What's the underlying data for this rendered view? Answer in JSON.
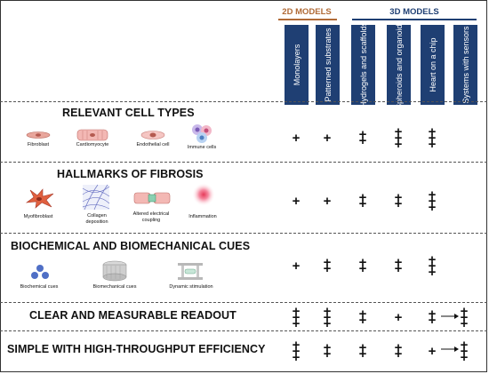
{
  "header": {
    "group_2d": "2D MODELS",
    "group_3d": "3D MODELS",
    "colors": {
      "group_2d": "#b06a36",
      "group_3d": "#1f3f73",
      "column_bg": "#1f3f73"
    },
    "columns": [
      "Monolayers",
      "Patterned substrates",
      "Hydrogels and scaffolds",
      "Spheroids and organoids",
      "Heart on a chip",
      "Systems with sensors"
    ]
  },
  "sections": [
    {
      "title": "RELEVANT CELL TYPES",
      "items": [
        "Fibroblast",
        "Cardiomyocyte",
        "Endothelial cell",
        "Immune cells"
      ],
      "scores": [
        "+",
        "+",
        "++",
        "+++",
        "+++",
        ""
      ]
    },
    {
      "title": "HALLMARKS OF FIBROSIS",
      "items": [
        "Myofibroblast",
        "Collagen deposition",
        "Altered electrical coupling",
        "Inflammation"
      ],
      "scores": [
        "+",
        "+",
        "++",
        "++",
        "+++",
        ""
      ]
    },
    {
      "title": "BIOCHEMICAL AND BIOMECHANICAL CUES",
      "items": [
        "Biochemical cues",
        "Biomechanical cues",
        "Dynamic stimulation"
      ],
      "scores": [
        "+",
        "++",
        "++",
        "++",
        "+++",
        ""
      ]
    },
    {
      "title": "CLEAR AND MEASURABLE READOUT",
      "items": [],
      "scores": [
        "+++",
        "+++",
        "++",
        "+",
        "++",
        "+++"
      ]
    },
    {
      "title": "SIMPLE WITH HIGH-THROUGHPUT EFFICIENCY",
      "items": [],
      "scores": [
        "+++",
        "++",
        "++",
        "++",
        "+",
        "+++"
      ]
    }
  ],
  "icons": [
    "fibroblast-icon",
    "cardiomyocyte-icon",
    "endothelial-cell-icon",
    "immune-cells-icon",
    "myofibroblast-icon",
    "collagen-icon",
    "electrical-coupling-icon",
    "inflammation-icon",
    "biochemical-cues-icon",
    "biomechanical-cues-icon",
    "dynamic-stimulation-icon",
    "arrow-right-icon"
  ]
}
